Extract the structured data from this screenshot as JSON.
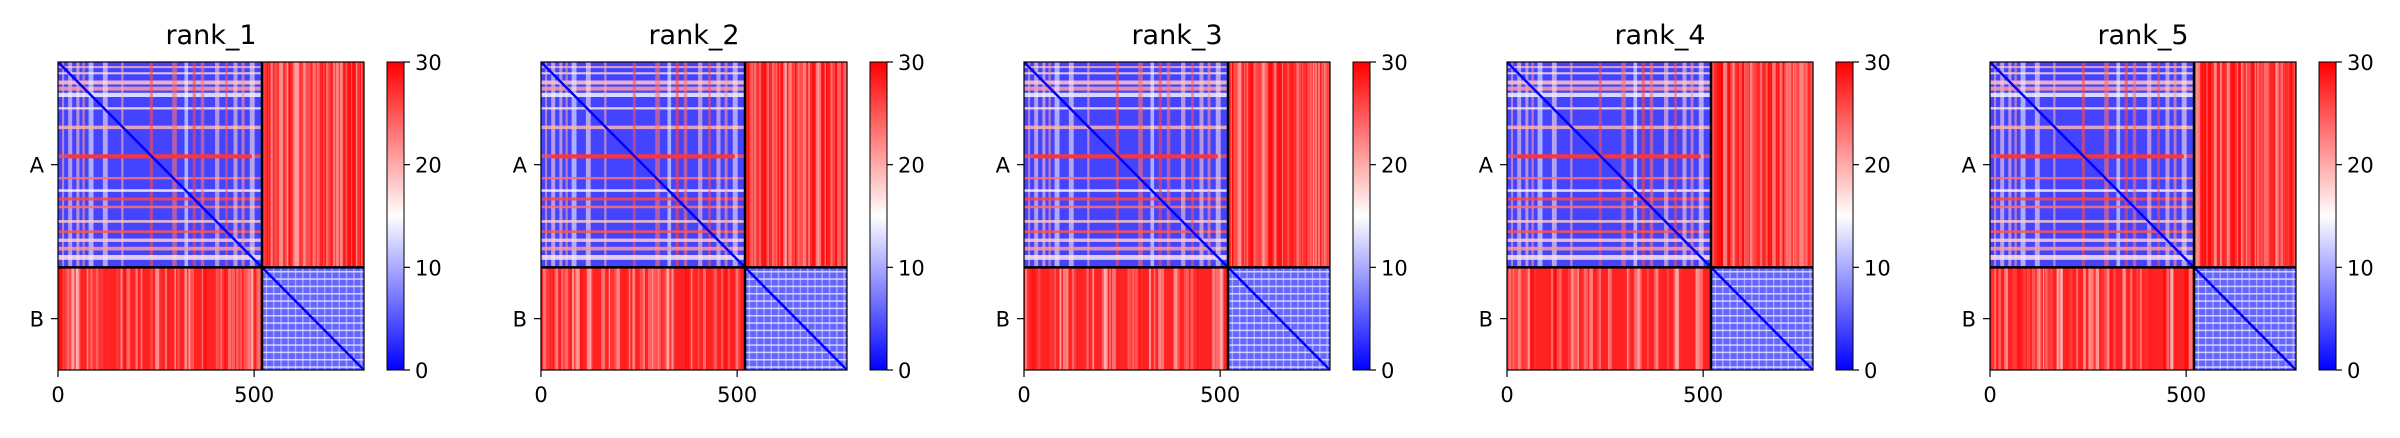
{
  "chart_data": {
    "type": "heatmap",
    "panels": [
      {
        "title": "rank_1"
      },
      {
        "title": "rank_2"
      },
      {
        "title": "rank_3"
      },
      {
        "title": "rank_4"
      },
      {
        "title": "rank_5"
      }
    ],
    "chains": [
      {
        "label": "A",
        "start": 0,
        "end": 520
      },
      {
        "label": "B",
        "start": 520,
        "end": 780
      }
    ],
    "total_length": 780,
    "x_ticks": [
      0,
      500
    ],
    "colorbar": {
      "min": 0,
      "max": 30,
      "ticks": [
        0,
        10,
        20,
        30
      ],
      "colors": [
        "#0000ff",
        "#ffffff",
        "#ff0000"
      ]
    }
  }
}
